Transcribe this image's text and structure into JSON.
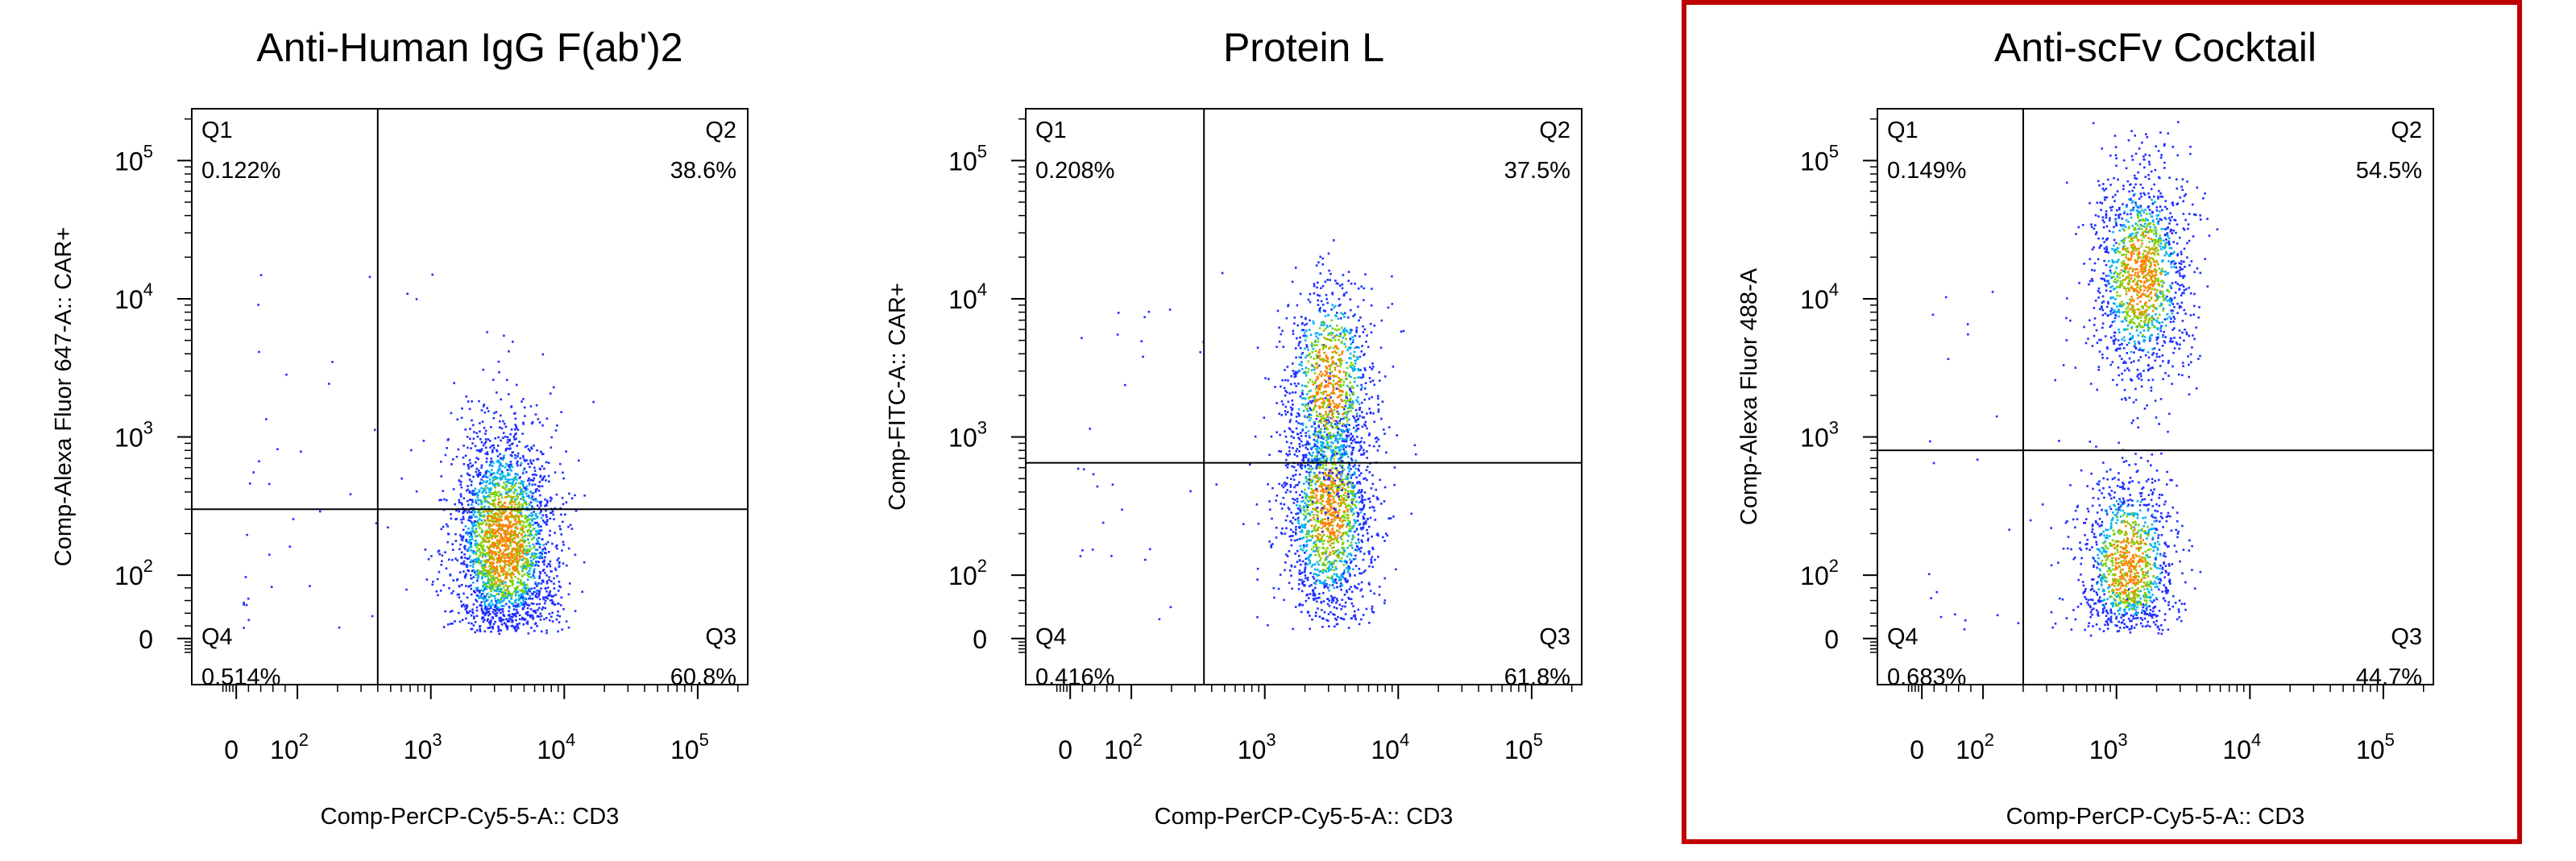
{
  "chart_data": [
    {
      "type": "scatter",
      "title": "Anti-Human IgG F(ab')2",
      "xlabel": "Comp-PerCP-Cy5-5-A:: CD3",
      "ylabel": "Comp-Alexa Fluor 647-A:: CAR+",
      "x_scale": "biexponential",
      "y_scale": "biexponential",
      "x_ticks": [
        "0",
        "10^2",
        "10^3",
        "10^4",
        "10^5"
      ],
      "y_ticks": [
        "0",
        "10^2",
        "10^3",
        "10^4",
        "10^5"
      ],
      "gate": {
        "x": 400,
        "y": 300
      },
      "quadrants": [
        {
          "name": "Q1",
          "percent": "0.122%"
        },
        {
          "name": "Q2",
          "percent": "38.6%"
        },
        {
          "name": "Q3",
          "percent": "60.8%"
        },
        {
          "name": "Q4",
          "percent": "0.514%"
        }
      ],
      "populations": [
        {
          "center_x": 3500,
          "center_y": 180,
          "spread_x_decades": 0.2,
          "spread_y_decades": 0.42,
          "fraction": 1.0
        }
      ],
      "highlight_border": false
    },
    {
      "type": "scatter",
      "title": "Protein L",
      "xlabel": "Comp-PerCP-Cy5-5-A:: CD3",
      "ylabel": "Comp-FITC-A:: CAR+",
      "x_scale": "biexponential",
      "y_scale": "biexponential",
      "x_ticks": [
        "0",
        "10^2",
        "10^3",
        "10^4",
        "10^5"
      ],
      "y_ticks": [
        "0",
        "10^2",
        "10^3",
        "10^4",
        "10^5"
      ],
      "gate": {
        "x": 350,
        "y": 650
      },
      "quadrants": [
        {
          "name": "Q1",
          "percent": "0.208%"
        },
        {
          "name": "Q2",
          "percent": "37.5%"
        },
        {
          "name": "Q3",
          "percent": "61.8%"
        },
        {
          "name": "Q4",
          "percent": "0.416%"
        }
      ],
      "populations": [
        {
          "center_x": 3000,
          "center_y": 300,
          "spread_x_decades": 0.17,
          "spread_y_decades": 0.42,
          "fraction": 0.62
        },
        {
          "center_x": 3000,
          "center_y": 2500,
          "spread_x_decades": 0.17,
          "spread_y_decades": 0.4,
          "fraction": 0.38
        }
      ],
      "highlight_border": false
    },
    {
      "type": "scatter",
      "title": "Anti-scFv Cocktail",
      "xlabel": "Comp-PerCP-Cy5-5-A:: CD3",
      "ylabel": "Comp-Alexa Fluor 488-A",
      "x_scale": "biexponential",
      "y_scale": "biexponential",
      "x_ticks": [
        "0",
        "10^2",
        "10^3",
        "10^4",
        "10^5"
      ],
      "y_ticks": [
        "0",
        "10^2",
        "10^3",
        "10^4",
        "10^5"
      ],
      "gate": {
        "x": 200,
        "y": 800
      },
      "quadrants": [
        {
          "name": "Q1",
          "percent": "0.149%"
        },
        {
          "name": "Q2",
          "percent": "54.5%"
        },
        {
          "name": "Q3",
          "percent": "44.7%"
        },
        {
          "name": "Q4",
          "percent": "0.683%"
        }
      ],
      "populations": [
        {
          "center_x": 1500,
          "center_y": 15000,
          "spread_x_decades": 0.18,
          "spread_y_decades": 0.4,
          "fraction": 0.55
        },
        {
          "center_x": 1200,
          "center_y": 120,
          "spread_x_decades": 0.18,
          "spread_y_decades": 0.35,
          "fraction": 0.45
        }
      ],
      "highlight_border": true,
      "highlight_color": "#c00000"
    }
  ],
  "colors": {
    "low_density": "#1f2fff",
    "mid_density": "#00b0f0",
    "high_density": "#7fd000",
    "peak_density": "#ff8000",
    "gate_line": "#000000",
    "highlight_border": "#c00000"
  }
}
